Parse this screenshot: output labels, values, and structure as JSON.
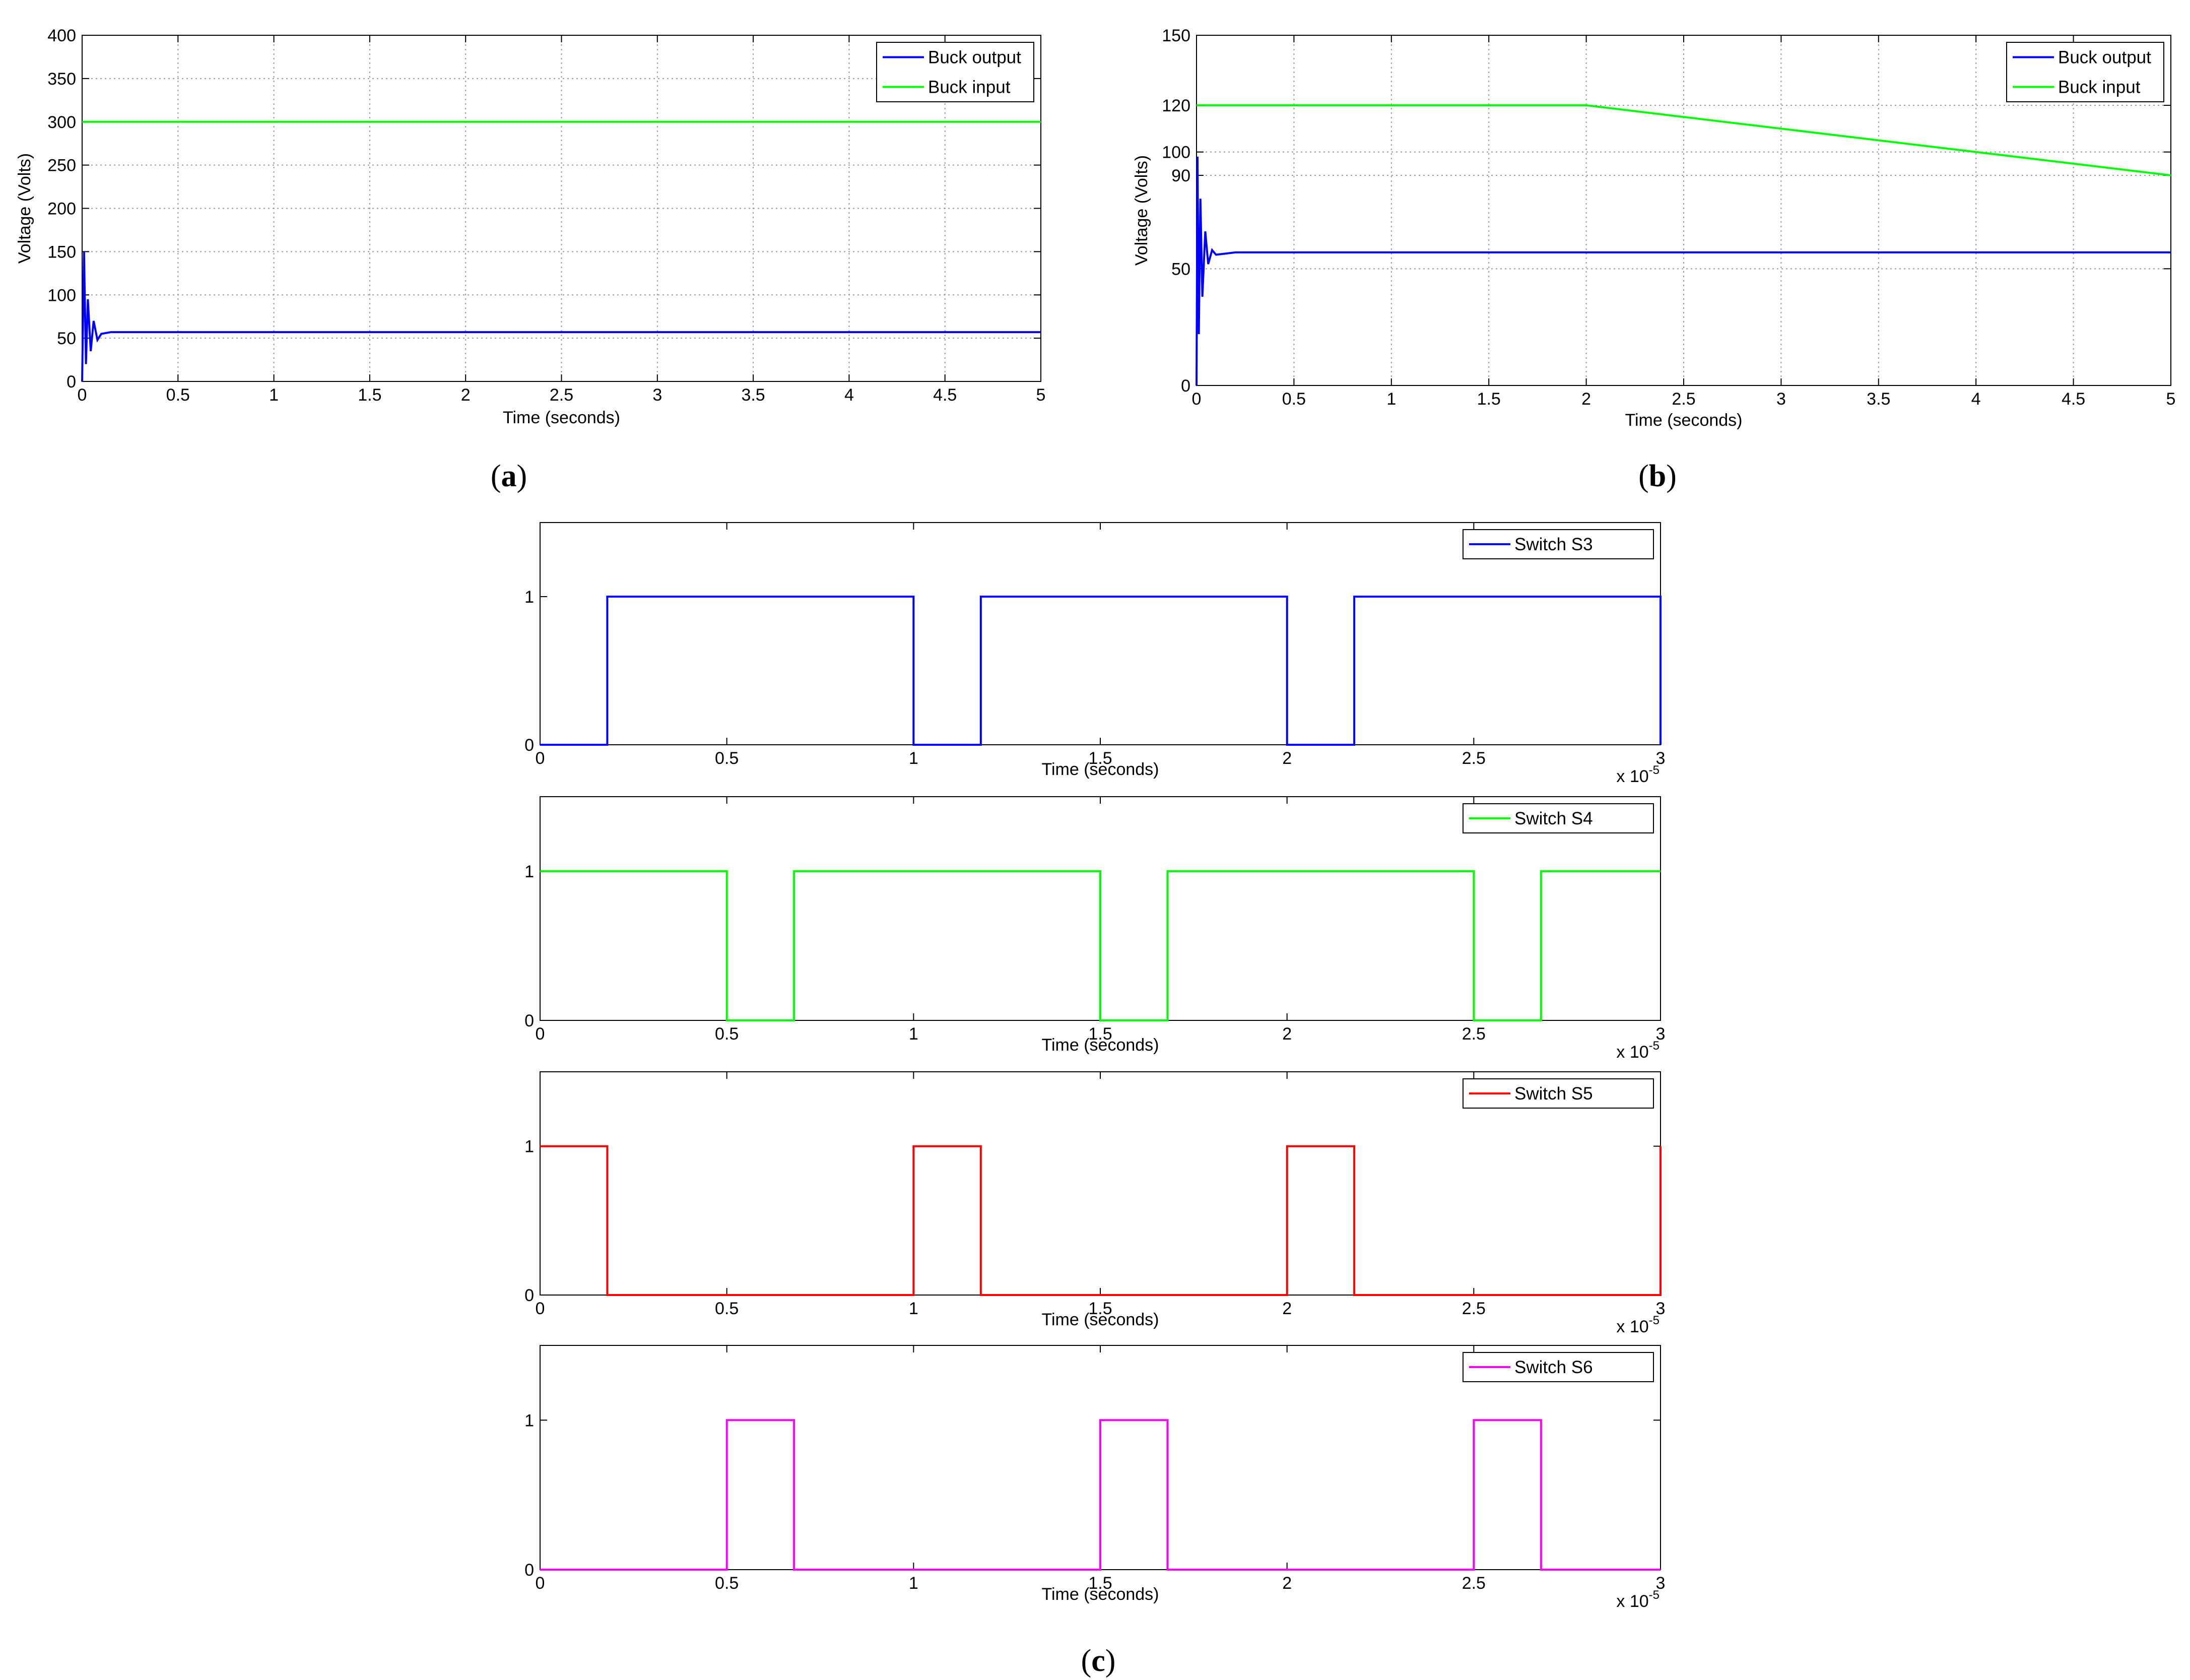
{
  "captions": {
    "a": "a",
    "b": "b",
    "c": "c"
  },
  "chart_data": [
    {
      "id": "a",
      "type": "line",
      "xlabel": "Time (seconds)",
      "ylabel": "Voltage (Volts)",
      "xlim": [
        0,
        5
      ],
      "ylim": [
        0,
        400
      ],
      "xticks": [
        "0",
        "0.5",
        "1",
        "1.5",
        "2",
        "2.5",
        "3",
        "3.5",
        "4",
        "4.5",
        "5"
      ],
      "yticks": [
        "0",
        "50",
        "100",
        "150",
        "200",
        "250",
        "300",
        "350",
        "400"
      ],
      "ytick_values": [
        0,
        50,
        100,
        150,
        200,
        250,
        300,
        350,
        400
      ],
      "grid": true,
      "legend_position": "top-right",
      "series": [
        {
          "name": "Buck output",
          "color": "#0000ff",
          "x": [
            0,
            0.01,
            0.02,
            0.03,
            0.045,
            0.06,
            0.08,
            0.1,
            0.15,
            0.2,
            5
          ],
          "y": [
            0,
            150,
            20,
            95,
            35,
            70,
            48,
            55,
            57,
            57,
            57
          ]
        },
        {
          "name": "Buck input",
          "color": "#00ff00",
          "x": [
            0,
            5
          ],
          "y": [
            300,
            300
          ]
        }
      ]
    },
    {
      "id": "b",
      "type": "line",
      "xlabel": "Time (seconds)",
      "ylabel": "Voltage (Volts)",
      "xlim": [
        0,
        5
      ],
      "ylim": [
        0,
        150
      ],
      "xticks": [
        "0",
        "0.5",
        "1",
        "1.5",
        "2",
        "2.5",
        "3",
        "3.5",
        "4",
        "4.5",
        "5"
      ],
      "yticks": [
        "0",
        "50",
        "90",
        "100",
        "120",
        "150"
      ],
      "ytick_values": [
        0,
        50,
        90,
        100,
        120,
        150
      ],
      "grid": true,
      "legend_position": "top-right",
      "series": [
        {
          "name": "Buck output",
          "color": "#0000ff",
          "x": [
            0,
            0.005,
            0.012,
            0.02,
            0.03,
            0.045,
            0.06,
            0.08,
            0.1,
            0.2,
            5
          ],
          "y": [
            0,
            98,
            22,
            80,
            38,
            66,
            52,
            58,
            56,
            57,
            57
          ]
        },
        {
          "name": "Buck input",
          "color": "#00ff00",
          "x": [
            0,
            2,
            5
          ],
          "y": [
            120,
            120,
            90
          ]
        }
      ]
    },
    {
      "id": "c1",
      "type": "line",
      "xlabel": "Time (seconds)",
      "x_multiplier": "x 10",
      "x_exponent": "-5",
      "xlim": [
        0,
        3
      ],
      "ylim": [
        0,
        1.5
      ],
      "xticks": [
        "0",
        "0.5",
        "1",
        "1.5",
        "2",
        "2.5",
        "3"
      ],
      "yticks": [
        "0",
        "1"
      ],
      "ytick_values": [
        0,
        1
      ],
      "grid": false,
      "legend_position": "top-right",
      "series": [
        {
          "name": "Switch S3",
          "color": "#0000ff",
          "x": [
            0,
            0.18,
            0.18,
            1,
            1,
            1.18,
            1.18,
            2,
            2,
            2.18,
            2.18,
            3,
            3
          ],
          "y": [
            0,
            0,
            1,
            1,
            0,
            0,
            1,
            1,
            0,
            0,
            1,
            1,
            0
          ]
        }
      ]
    },
    {
      "id": "c2",
      "type": "line",
      "xlabel": "Time (seconds)",
      "x_multiplier": "x 10",
      "x_exponent": "-5",
      "xlim": [
        0,
        3
      ],
      "ylim": [
        0,
        1.5
      ],
      "xticks": [
        "0",
        "0.5",
        "1",
        "1.5",
        "2",
        "2.5",
        "3"
      ],
      "yticks": [
        "0",
        "1"
      ],
      "ytick_values": [
        0,
        1
      ],
      "grid": false,
      "legend_position": "top-right",
      "series": [
        {
          "name": "Switch S4",
          "color": "#00ff00",
          "x": [
            0,
            0.5,
            0.5,
            0.68,
            0.68,
            1.5,
            1.5,
            1.68,
            1.68,
            2.5,
            2.5,
            2.68,
            2.68,
            3
          ],
          "y": [
            1,
            1,
            0,
            0,
            1,
            1,
            0,
            0,
            1,
            1,
            0,
            0,
            1,
            1
          ]
        }
      ]
    },
    {
      "id": "c3",
      "type": "line",
      "xlabel": "Time (seconds)",
      "x_multiplier": "x 10",
      "x_exponent": "-5",
      "xlim": [
        0,
        3
      ],
      "ylim": [
        0,
        1.5
      ],
      "xticks": [
        "0",
        "0.5",
        "1",
        "1.5",
        "2",
        "2.5",
        "3"
      ],
      "yticks": [
        "0",
        "1"
      ],
      "ytick_values": [
        0,
        1
      ],
      "grid": false,
      "legend_position": "top-right",
      "series": [
        {
          "name": "Switch S5",
          "color": "#ff0000",
          "x": [
            0,
            0.18,
            0.18,
            1,
            1,
            1.18,
            1.18,
            2,
            2,
            2.18,
            2.18,
            3,
            3
          ],
          "y": [
            1,
            1,
            0,
            0,
            1,
            1,
            0,
            0,
            1,
            1,
            0,
            0,
            1
          ]
        }
      ]
    },
    {
      "id": "c4",
      "type": "line",
      "xlabel": "Time (seconds)",
      "x_multiplier": "x 10",
      "x_exponent": "-5",
      "xlim": [
        0,
        3
      ],
      "ylim": [
        0,
        1.5
      ],
      "xticks": [
        "0",
        "0.5",
        "1",
        "1.5",
        "2",
        "2.5",
        "3"
      ],
      "yticks": [
        "0",
        "1"
      ],
      "ytick_values": [
        0,
        1
      ],
      "grid": false,
      "legend_position": "top-right",
      "series": [
        {
          "name": "Switch S6",
          "color": "#ff00ff",
          "x": [
            0,
            0.5,
            0.5,
            0.68,
            0.68,
            1.5,
            1.5,
            1.68,
            1.68,
            2.5,
            2.5,
            2.68,
            2.68,
            3
          ],
          "y": [
            0,
            0,
            1,
            1,
            0,
            0,
            1,
            1,
            0,
            0,
            1,
            1,
            0,
            0
          ]
        }
      ]
    }
  ]
}
